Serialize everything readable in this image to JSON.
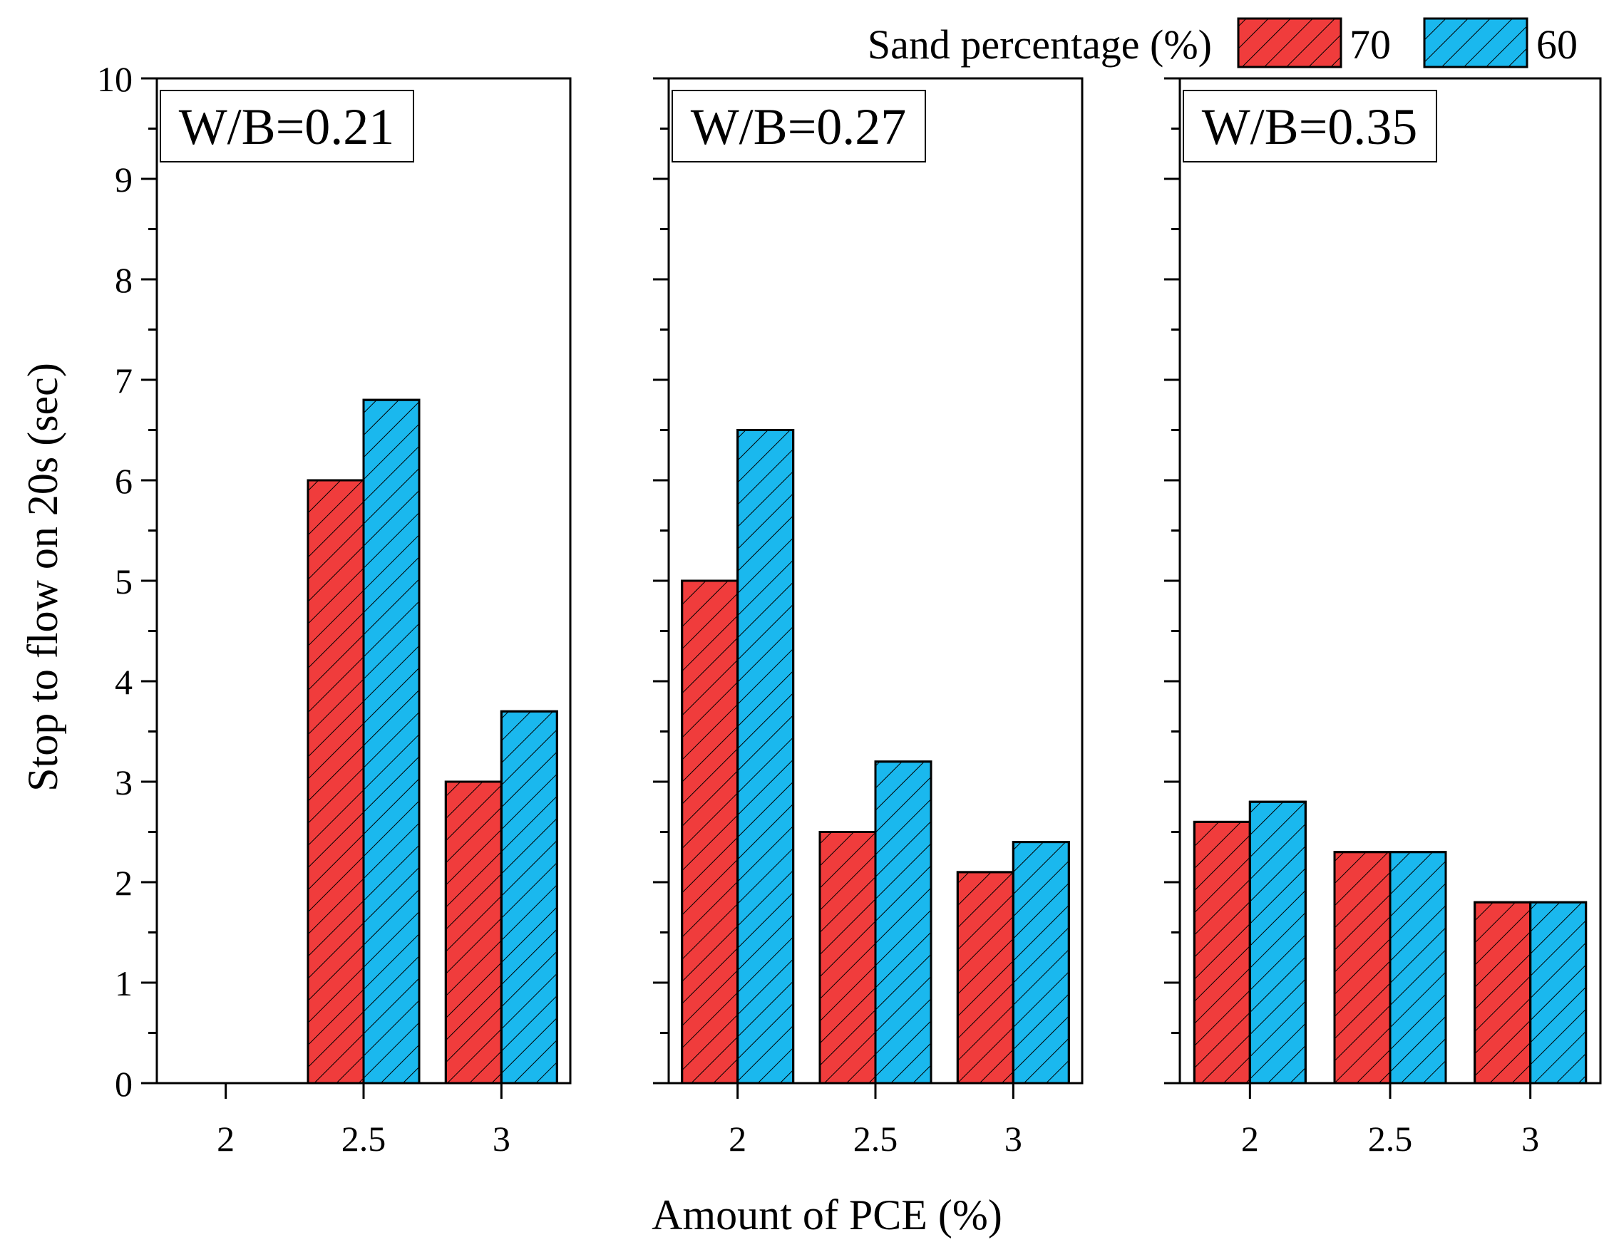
{
  "chart_data": {
    "type": "bar",
    "ylabel": "Stop to flow on 20s (sec)",
    "xlabel": "Amount of PCE (%)",
    "ylim": [
      0,
      10
    ],
    "yticks": [
      "0",
      "1",
      "2",
      "3",
      "4",
      "5",
      "6",
      "7",
      "8",
      "9",
      "10"
    ],
    "categories": [
      "2",
      "2.5",
      "3"
    ],
    "legend": {
      "title": "Sand percentage (%)",
      "entries": [
        {
          "label": "70",
          "color": "#f03c3c"
        },
        {
          "label": "60",
          "color": "#1ab8ee"
        }
      ],
      "placement": "top-right"
    },
    "panels": [
      {
        "title": "W/B=0.21",
        "series": [
          {
            "name": "70",
            "values": [
              null,
              6.0,
              3.0
            ]
          },
          {
            "name": "60",
            "values": [
              null,
              6.8,
              3.7
            ]
          }
        ]
      },
      {
        "title": "W/B=0.27",
        "series": [
          {
            "name": "70",
            "values": [
              5.0,
              2.5,
              2.1
            ]
          },
          {
            "name": "60",
            "values": [
              6.5,
              3.2,
              2.4
            ]
          }
        ]
      },
      {
        "title": "W/B=0.35",
        "series": [
          {
            "name": "70",
            "values": [
              2.6,
              2.3,
              1.8
            ]
          },
          {
            "name": "60",
            "values": [
              2.8,
              2.3,
              1.8
            ]
          }
        ]
      }
    ]
  }
}
